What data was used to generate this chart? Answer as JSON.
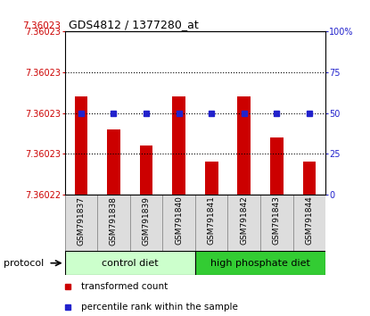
{
  "title": "GDS4812 / 1377280_at",
  "samples": [
    "GSM791837",
    "GSM791838",
    "GSM791839",
    "GSM791840",
    "GSM791841",
    "GSM791842",
    "GSM791843",
    "GSM791844"
  ],
  "bar_tops": [
    7.360232,
    7.360228,
    7.360226,
    7.360232,
    7.360224,
    7.360232,
    7.360227,
    7.360224
  ],
  "bar_bottoms": [
    7.36022,
    7.36022,
    7.36022,
    7.36022,
    7.36022,
    7.36022,
    7.36022,
    7.36022
  ],
  "percentile_values": [
    50,
    50,
    50,
    50,
    50,
    50,
    50,
    50
  ],
  "ylim_left": [
    7.36022,
    7.36024
  ],
  "ylim_right": [
    0,
    100
  ],
  "yticks_right": [
    0,
    25,
    50,
    75,
    100
  ],
  "bar_color": "#cc0000",
  "dot_color": "#2222cc",
  "grid_color": "#000000",
  "protocol_groups": [
    {
      "label": "control diet",
      "start": 0,
      "end": 4,
      "color": "#ccffcc"
    },
    {
      "label": "high phosphate diet",
      "start": 4,
      "end": 8,
      "color": "#33cc33"
    }
  ],
  "protocol_label": "protocol",
  "legend_items": [
    {
      "color": "#cc0000",
      "label": "transformed count"
    },
    {
      "color": "#2222cc",
      "label": "percentile rank within the sample"
    }
  ],
  "top_label": "7.36023",
  "ytick_labels_left": [
    "7.36022",
    "7.36023",
    "7.36023",
    "7.36023",
    "7.36023"
  ],
  "bar_width": 0.4
}
